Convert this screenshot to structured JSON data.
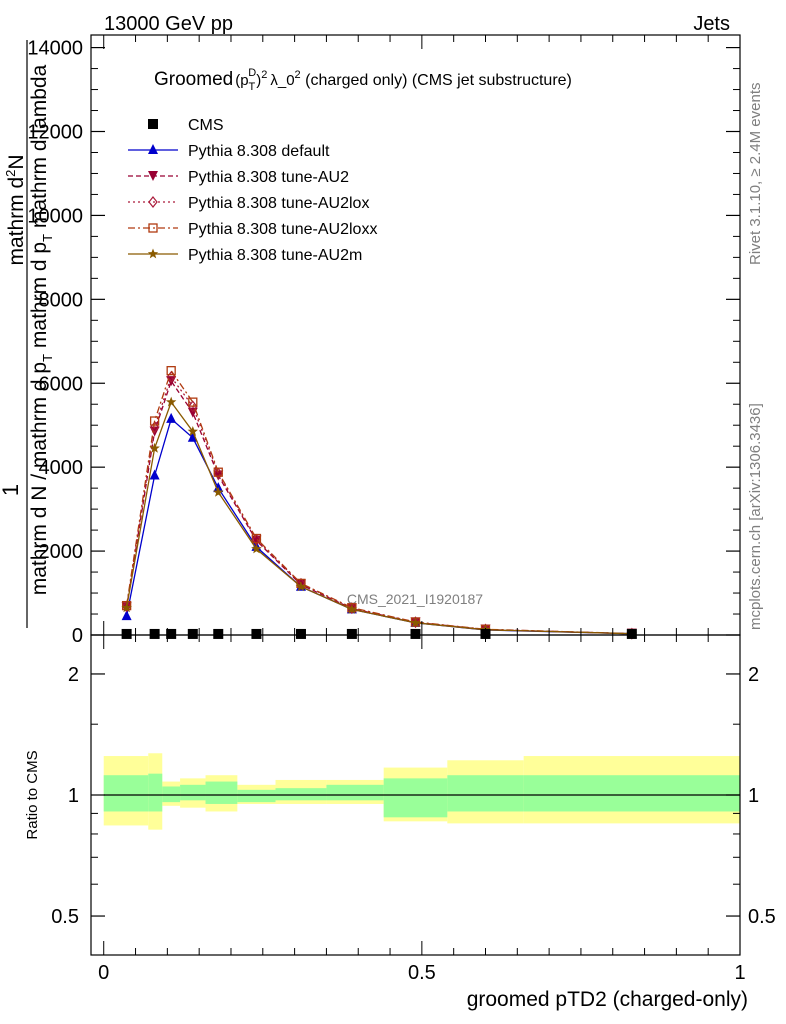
{
  "header": {
    "energy": "13000 GeV pp",
    "category": "Jets"
  },
  "side_labels": {
    "rivet": "Rivet 3.1.10, ≥ 2.4M events",
    "mcplots": "mcplots.cern.ch [arXiv:1306.3436]"
  },
  "watermark": "CMS_2021_I1920187",
  "chart_data": [
    {
      "type": "line",
      "title_parts": {
        "groomed": "Groomed",
        "p": "(p",
        "sub": "T",
        "sup": "D",
        "rest": "λ_0",
        "tail": "  (charged only) (CMS jet substructure)"
      },
      "ylabel": {
        "one": "1",
        "numerator": "mathrm d",
        "numerator_sup": "2",
        "numerator_rest": "N",
        "denominator": "mathrm d N / mathrm d p",
        "denominator_sub": "T",
        "denominator_rest": " mathrm d p",
        "denominator_sub2": "T",
        "denominator_rest2": " mathrm d lambda"
      },
      "ylim": [
        0,
        14300
      ],
      "xlim": [
        -0.02,
        1.0
      ],
      "yticks": [
        0,
        2000,
        4000,
        6000,
        8000,
        10000,
        12000,
        14000
      ],
      "ytick_labels": [
        "0",
        "2000",
        "4000",
        "6000",
        "8000",
        "10000",
        "12000",
        "14000"
      ],
      "x": [
        0.036,
        0.08,
        0.106,
        0.14,
        0.18,
        0.24,
        0.31,
        0.39,
        0.49,
        0.6,
        0.83
      ],
      "series": [
        {
          "name": "CMS",
          "color": "#000000",
          "values": [
            25,
            25,
            25,
            25,
            25,
            25,
            25,
            25,
            25,
            25,
            25
          ]
        },
        {
          "name": "Pythia 8.308 default",
          "color": "#0000cc",
          "values": [
            450,
            3800,
            5150,
            4700,
            3500,
            2100,
            1150,
            610,
            290,
            120,
            30
          ]
        },
        {
          "name": "Pythia 8.308 tune-AU2",
          "color": "#990033",
          "values": [
            660,
            4850,
            6050,
            5300,
            3800,
            2250,
            1200,
            630,
            300,
            130,
            32
          ]
        },
        {
          "name": "Pythia 8.308 tune-AU2lox",
          "color": "#aa1a3a",
          "values": [
            680,
            4950,
            6150,
            5450,
            3850,
            2270,
            1220,
            640,
            305,
            132,
            32
          ]
        },
        {
          "name": "Pythia 8.308 tune-AU2loxx",
          "color": "#b03a10",
          "values": [
            700,
            5100,
            6300,
            5550,
            3880,
            2300,
            1230,
            650,
            310,
            135,
            33
          ]
        },
        {
          "name": "Pythia 8.308 tune-AU2m",
          "color": "#8a5a00",
          "values": [
            650,
            4450,
            5550,
            4850,
            3400,
            2050,
            1150,
            610,
            290,
            125,
            31
          ]
        }
      ],
      "legend_position": "top-left"
    },
    {
      "type": "area",
      "ylabel": "Ratio to CMS",
      "xlabel": "groomed pTD2 (charged-only)",
      "ylog": true,
      "ylim": [
        0.4,
        2.5
      ],
      "yticks": [
        0.5,
        1,
        2
      ],
      "ytick_labels": [
        "0.5",
        "1",
        "2"
      ],
      "xticks": [
        0,
        0.5,
        1
      ],
      "xtick_labels": [
        "0",
        "0.5",
        "1"
      ],
      "reference_line": 1,
      "bins": [
        0.0,
        0.07,
        0.092,
        0.12,
        0.16,
        0.21,
        0.27,
        0.35,
        0.44,
        0.54,
        0.66,
        1.0
      ],
      "band_inner": [
        [
          0.91,
          1.12
        ],
        [
          0.91,
          1.13
        ],
        [
          0.96,
          1.05
        ],
        [
          0.97,
          1.06
        ],
        [
          0.95,
          1.08
        ],
        [
          0.96,
          1.03
        ],
        [
          0.97,
          1.04
        ],
        [
          0.97,
          1.06
        ],
        [
          0.88,
          1.1
        ],
        [
          0.91,
          1.12
        ],
        [
          0.91,
          1.12
        ]
      ],
      "band_outer": [
        [
          0.84,
          1.25
        ],
        [
          0.82,
          1.27
        ],
        [
          0.94,
          1.08
        ],
        [
          0.93,
          1.1
        ],
        [
          0.91,
          1.12
        ],
        [
          0.95,
          1.06
        ],
        [
          0.95,
          1.09
        ],
        [
          0.95,
          1.09
        ],
        [
          0.86,
          1.17
        ],
        [
          0.85,
          1.22
        ],
        [
          0.85,
          1.25
        ]
      ],
      "colors": {
        "inner": "#99ff99",
        "outer": "#ffff99"
      }
    }
  ]
}
